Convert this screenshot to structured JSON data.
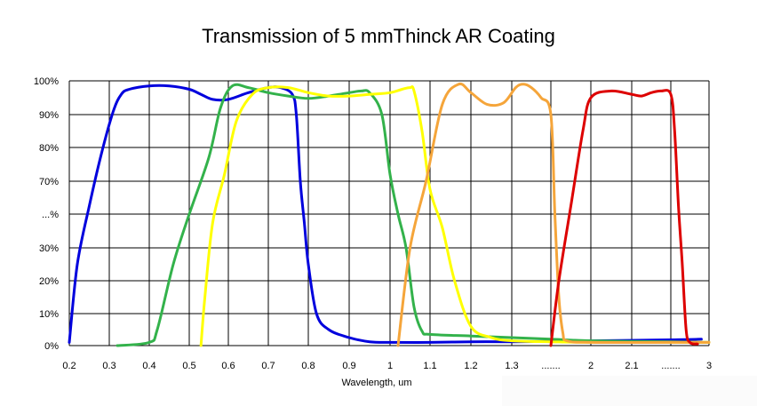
{
  "chart_data": {
    "type": "line",
    "title": "Transmission of 5 mmThinck AR Coating",
    "xlabel": "Wavelength, um",
    "ylabel": "",
    "x_ticks": [
      "0.2",
      "0.3",
      "0.4",
      "0.5",
      "0.6",
      "0.7",
      "0.8",
      "0.9",
      "1",
      "1.1",
      "1.2",
      "1.3",
      ".......",
      "2",
      "2.1",
      ".......",
      "3"
    ],
    "y_ticks": [
      "0%",
      "10%",
      "20%",
      "30%",
      "...%",
      "70%",
      "80%",
      "90%",
      "100%"
    ],
    "grid": true,
    "legend": "none",
    "series": [
      {
        "color": "#0000dd",
        "points": [
          [
            0.2,
            0.01
          ],
          [
            0.22,
            0.25
          ],
          [
            0.25,
            0.55
          ],
          [
            0.28,
            0.78
          ],
          [
            0.31,
            0.91
          ],
          [
            0.33,
            0.96
          ],
          [
            0.35,
            0.975
          ],
          [
            0.4,
            0.985
          ],
          [
            0.45,
            0.985
          ],
          [
            0.5,
            0.975
          ],
          [
            0.53,
            0.96
          ],
          [
            0.56,
            0.945
          ],
          [
            0.6,
            0.945
          ],
          [
            0.65,
            0.965
          ],
          [
            0.7,
            0.98
          ],
          [
            0.73,
            0.98
          ],
          [
            0.76,
            0.96
          ],
          [
            0.77,
            0.9
          ],
          [
            0.78,
            0.7
          ],
          [
            0.79,
            0.45
          ],
          [
            0.8,
            0.25
          ],
          [
            0.82,
            0.1
          ],
          [
            0.85,
            0.05
          ],
          [
            0.9,
            0.025
          ],
          [
            0.95,
            0.012
          ],
          [
            1.0,
            0.01
          ],
          [
            1.1,
            0.01
          ],
          [
            1.2,
            0.012
          ],
          [
            1.3,
            0.012
          ],
          [
            1.5,
            0.013
          ],
          [
            2.0,
            0.015
          ],
          [
            2.5,
            0.018
          ],
          [
            2.9,
            0.02
          ]
        ]
      },
      {
        "color": "#33b24b",
        "points": [
          [
            0.32,
            0.0
          ],
          [
            0.4,
            0.01
          ],
          [
            0.42,
            0.05
          ],
          [
            0.46,
            0.25
          ],
          [
            0.5,
            0.5
          ],
          [
            0.55,
            0.77
          ],
          [
            0.58,
            0.92
          ],
          [
            0.61,
            0.985
          ],
          [
            0.65,
            0.98
          ],
          [
            0.7,
            0.965
          ],
          [
            0.75,
            0.955
          ],
          [
            0.8,
            0.948
          ],
          [
            0.85,
            0.955
          ],
          [
            0.9,
            0.965
          ],
          [
            0.93,
            0.97
          ],
          [
            0.95,
            0.965
          ],
          [
            0.98,
            0.9
          ],
          [
            1.0,
            0.72
          ],
          [
            1.02,
            0.5
          ],
          [
            1.04,
            0.3
          ],
          [
            1.06,
            0.12
          ],
          [
            1.08,
            0.045
          ],
          [
            1.1,
            0.035
          ],
          [
            1.2,
            0.03
          ],
          [
            1.3,
            0.025
          ],
          [
            1.5,
            0.02
          ],
          [
            2.0,
            0.015
          ],
          [
            2.5,
            0.012
          ],
          [
            3.0,
            0.01
          ]
        ]
      },
      {
        "color": "#ffff00",
        "points": [
          [
            0.53,
            0.0
          ],
          [
            0.54,
            0.15
          ],
          [
            0.56,
            0.45
          ],
          [
            0.59,
            0.72
          ],
          [
            0.62,
            0.88
          ],
          [
            0.66,
            0.96
          ],
          [
            0.7,
            0.98
          ],
          [
            0.75,
            0.98
          ],
          [
            0.8,
            0.965
          ],
          [
            0.85,
            0.955
          ],
          [
            0.9,
            0.955
          ],
          [
            0.95,
            0.96
          ],
          [
            1.0,
            0.965
          ],
          [
            1.03,
            0.975
          ],
          [
            1.05,
            0.98
          ],
          [
            1.06,
            0.97
          ],
          [
            1.08,
            0.85
          ],
          [
            1.1,
            0.65
          ],
          [
            1.13,
            0.42
          ],
          [
            1.16,
            0.2
          ],
          [
            1.2,
            0.06
          ],
          [
            1.25,
            0.025
          ],
          [
            1.3,
            0.015
          ],
          [
            1.5,
            0.012
          ],
          [
            2.0,
            0.01
          ],
          [
            2.5,
            0.01
          ],
          [
            3.0,
            0.01
          ]
        ]
      },
      {
        "color": "#f5a53a",
        "points": [
          [
            1.02,
            0.0
          ],
          [
            1.05,
            0.3
          ],
          [
            1.09,
            0.7
          ],
          [
            1.13,
            0.93
          ],
          [
            1.17,
            0.99
          ],
          [
            1.2,
            0.965
          ],
          [
            1.24,
            0.93
          ],
          [
            1.28,
            0.935
          ],
          [
            1.32,
            0.98
          ],
          [
            1.36,
            0.99
          ],
          [
            1.4,
            0.98
          ],
          [
            1.45,
            0.95
          ],
          [
            1.5,
            0.9
          ],
          [
            1.55,
            0.5
          ],
          [
            1.6,
            0.15
          ],
          [
            1.65,
            0.04
          ],
          [
            1.7,
            0.015
          ],
          [
            2.0,
            0.01
          ],
          [
            2.5,
            0.01
          ],
          [
            3.0,
            0.01
          ]
        ]
      },
      {
        "color": "#dd0000",
        "points": [
          [
            1.5,
            0.0
          ],
          [
            1.6,
            0.2
          ],
          [
            1.75,
            0.55
          ],
          [
            1.9,
            0.85
          ],
          [
            2.0,
            0.95
          ],
          [
            2.05,
            0.97
          ],
          [
            2.1,
            0.96
          ],
          [
            2.2,
            0.955
          ],
          [
            2.3,
            0.965
          ],
          [
            2.4,
            0.97
          ],
          [
            2.5,
            0.96
          ],
          [
            2.55,
            0.85
          ],
          [
            2.6,
            0.55
          ],
          [
            2.65,
            0.25
          ],
          [
            2.7,
            0.05
          ],
          [
            2.75,
            0.01
          ],
          [
            2.85,
            0.005
          ]
        ]
      }
    ]
  }
}
